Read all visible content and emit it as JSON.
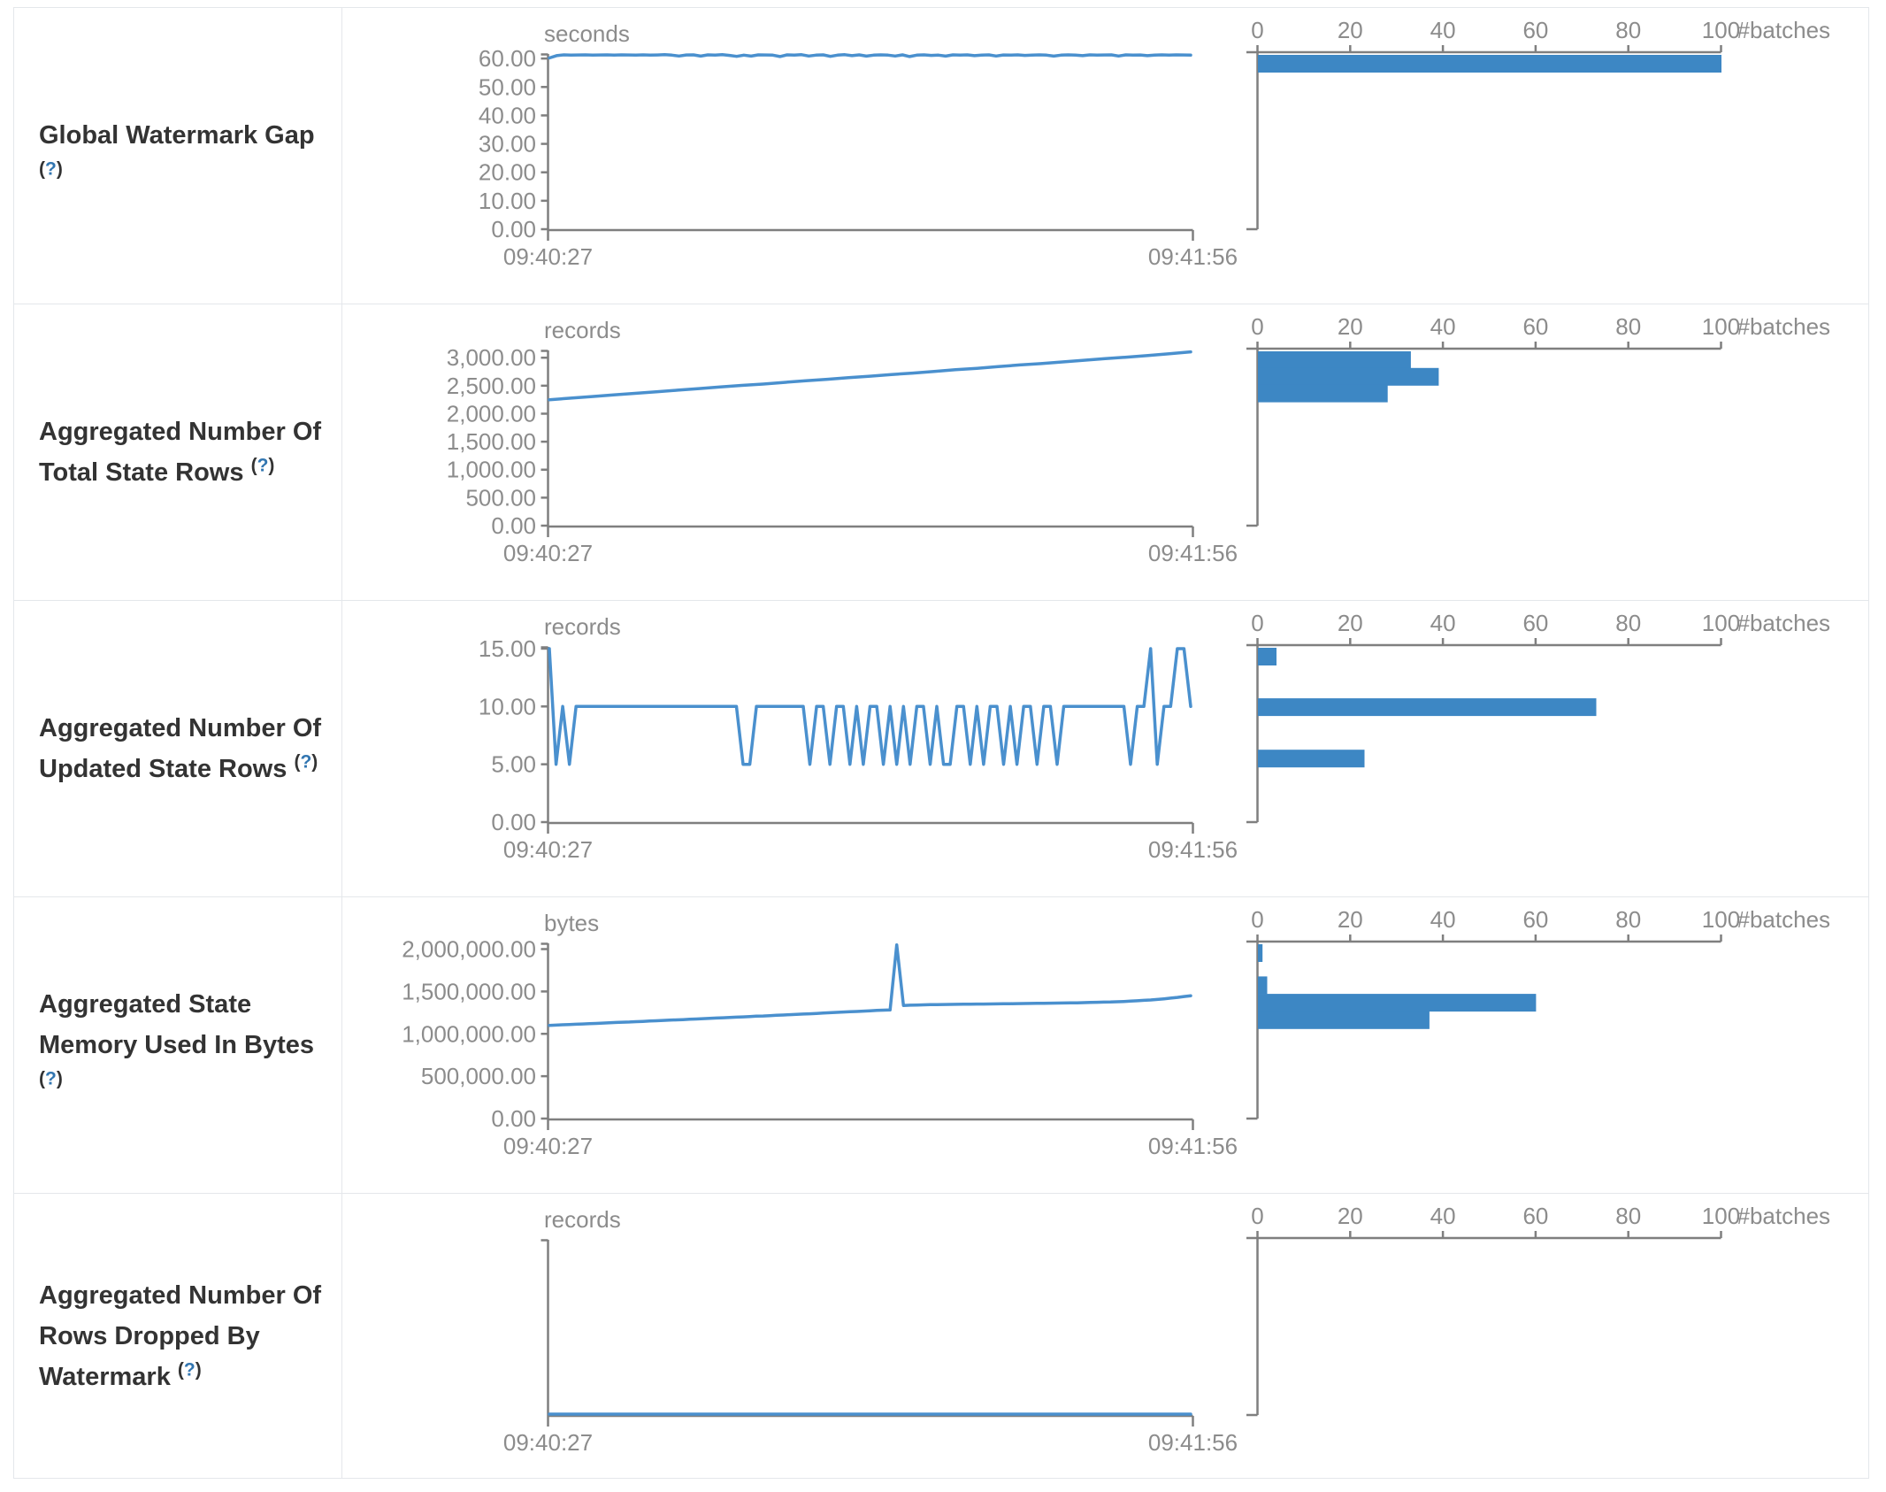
{
  "meta": {
    "paren_open": "(",
    "question_mark": "?",
    "paren_close": ")"
  },
  "colors": {
    "line": "#4a90ce",
    "bar": "#3d87c4",
    "axis": "#7f7f7f",
    "tick_text": "#8c8c8c",
    "label_text": "#333333",
    "help_link": "#3276b1",
    "border": "#e4e7eb"
  },
  "histogram_axis": {
    "ticks": [
      {
        "v": 0,
        "label": "0"
      },
      {
        "v": 20,
        "label": "20"
      },
      {
        "v": 40,
        "label": "40"
      },
      {
        "v": 60,
        "label": "60"
      },
      {
        "v": 80,
        "label": "80"
      },
      {
        "v": 100,
        "label": "100"
      }
    ],
    "max": 100,
    "unit": "#batches"
  },
  "rows": [
    {
      "label": "Global Watermark Gap\n",
      "timeline": {
        "type": "line",
        "unit": "seconds",
        "x_start_label": "09:40:27",
        "x_end_label": "09:41:56",
        "domain_max": 61.6,
        "y_ticks": [
          {
            "v": 60,
            "label": "60.00"
          },
          {
            "v": 50,
            "label": "50.00"
          },
          {
            "v": 40,
            "label": "40.00"
          },
          {
            "v": 30,
            "label": "30.00"
          },
          {
            "v": 20,
            "label": "20.00"
          },
          {
            "v": 10,
            "label": "10.00"
          },
          {
            "v": 0,
            "label": "0.00"
          }
        ],
        "values": [
          60.2,
          61.0,
          61.3,
          61.2,
          61.25,
          61.3,
          61.2,
          61.25,
          61.3,
          61.2,
          61.3,
          61.25,
          61.2,
          61.3,
          61.2,
          61.25,
          61.35,
          61.2,
          60.9,
          61.25,
          61.3,
          60.85,
          61.3,
          61.2,
          61.35,
          61.1,
          60.75,
          61.2,
          60.85,
          61.3,
          61.25,
          61.2,
          60.7,
          61.3,
          61.2,
          61.35,
          60.9,
          61.2,
          61.3,
          60.75,
          61.2,
          61.35,
          61.0,
          61.3,
          60.85,
          61.2,
          61.3,
          61.2,
          60.9,
          61.3,
          60.7,
          61.2,
          61.3,
          61.1,
          61.2,
          60.85,
          61.3,
          61.2,
          61.3,
          61.0,
          61.2,
          61.3,
          60.9,
          61.25,
          61.2,
          61.3,
          61.1,
          61.2,
          61.3,
          61.2,
          60.85,
          61.2,
          61.3,
          61.2,
          61.0,
          61.3,
          61.2,
          61.25,
          61.3,
          60.9,
          61.3,
          61.2,
          61.25,
          61.0,
          61.2,
          61.3,
          61.2,
          61.3,
          61.25,
          61.2
        ]
      },
      "histogram": {
        "type": "bar",
        "bars": [
          {
            "count": 100,
            "y_frac": 0.0
          }
        ]
      }
    },
    {
      "label": "Aggregated Number Of\nTotal State Rows ",
      "timeline": {
        "type": "line",
        "unit": "records",
        "x_start_label": "09:40:27",
        "x_end_label": "09:41:56",
        "domain_max": 3130,
        "y_ticks": [
          {
            "v": 3000,
            "label": "3,000.00"
          },
          {
            "v": 2500,
            "label": "2,500.00"
          },
          {
            "v": 2000,
            "label": "2,000.00"
          },
          {
            "v": 1500,
            "label": "1,500.00"
          },
          {
            "v": 1000,
            "label": "1,000.00"
          },
          {
            "v": 500,
            "label": "500.00"
          },
          {
            "v": 0,
            "label": "0.00"
          }
        ],
        "values": [
          2250,
          2278,
          2306,
          2335,
          2363,
          2392,
          2420,
          2448,
          2477,
          2505,
          2530,
          2560,
          2590,
          2615,
          2645,
          2670,
          2700,
          2725,
          2755,
          2785,
          2810,
          2840,
          2870,
          2895,
          2925,
          2955,
          2985,
          3010,
          3040,
          3070,
          3105
        ]
      },
      "histogram": {
        "type": "bar",
        "bars": [
          {
            "count": 33,
            "y_frac": 0.0
          },
          {
            "count": 39,
            "y_frac": 0.0955
          },
          {
            "count": 28,
            "y_frac": 0.191
          }
        ]
      }
    },
    {
      "label": "Aggregated Number Of\nUpdated State Rows ",
      "timeline": {
        "type": "line",
        "unit": "records",
        "x_start_label": "09:40:27",
        "x_end_label": "09:41:56",
        "domain_max": 15.15,
        "y_ticks": [
          {
            "v": 15,
            "label": "15.00"
          },
          {
            "v": 10,
            "label": "10.00"
          },
          {
            "v": 5,
            "label": "5.00"
          },
          {
            "v": 0,
            "label": "0.00"
          }
        ],
        "values": [
          15,
          5,
          10,
          5,
          10,
          10,
          10,
          10,
          10,
          10,
          10,
          10,
          10,
          10,
          10,
          10,
          10,
          10,
          10,
          10,
          10,
          10,
          10,
          10,
          10,
          10,
          10,
          10,
          10,
          5,
          5,
          10,
          10,
          10,
          10,
          10,
          10,
          10,
          10,
          5,
          10,
          10,
          5,
          10,
          10,
          5,
          10,
          5,
          10,
          10,
          5,
          10,
          5,
          10,
          5,
          10,
          10,
          5,
          10,
          5,
          5,
          10,
          10,
          5,
          10,
          5,
          10,
          10,
          5,
          10,
          5,
          10,
          10,
          5,
          10,
          10,
          5,
          10,
          10,
          10,
          10,
          10,
          10,
          10,
          10,
          10,
          10,
          5,
          10,
          10,
          15,
          5,
          10,
          10,
          15,
          15,
          10
        ]
      },
      "histogram": {
        "type": "bar",
        "bars": [
          {
            "count": 4,
            "y_frac": 0.0
          },
          {
            "count": 73,
            "y_frac": 0.29
          },
          {
            "count": 23,
            "y_frac": 0.585
          }
        ]
      }
    },
    {
      "label": "Aggregated State\nMemory Used In Bytes\n",
      "timeline": {
        "type": "line",
        "unit": "bytes",
        "x_start_label": "09:40:27",
        "x_end_label": "09:41:56",
        "domain_max": 2068000,
        "y_ticks": [
          {
            "v": 2000000,
            "label": "2,000,000.00"
          },
          {
            "v": 1500000,
            "label": "1,500,000.00"
          },
          {
            "v": 1000000,
            "label": "1,000,000.00"
          },
          {
            "v": 500000,
            "label": "500,000.00"
          },
          {
            "v": 0,
            "label": "0.00"
          }
        ],
        "values": [
          1100000,
          1103000,
          1107000,
          1110000,
          1113000,
          1117000,
          1120000,
          1123000,
          1127000,
          1130000,
          1134000,
          1137000,
          1140000,
          1144000,
          1147000,
          1151000,
          1154000,
          1158000,
          1161000,
          1165000,
          1168000,
          1172000,
          1175000,
          1179000,
          1182000,
          1186000,
          1190000,
          1193000,
          1197000,
          1200000,
          1204000,
          1208000,
          1211000,
          1215000,
          1219000,
          1222000,
          1226000,
          1230000,
          1234000,
          1237000,
          1241000,
          1245000,
          1249000,
          1253000,
          1257000,
          1261000,
          1264000,
          1268000,
          1272000,
          1276000,
          1279000,
          1282000,
          2050000,
          1335000,
          1338000,
          1340000,
          1342000,
          1344000,
          1345000,
          1346000,
          1347000,
          1348000,
          1349000,
          1350000,
          1351000,
          1352000,
          1353000,
          1354000,
          1355000,
          1356000,
          1357000,
          1358000,
          1359000,
          1360000,
          1361000,
          1362000,
          1363000,
          1364000,
          1365000,
          1366000,
          1368000,
          1370000,
          1372000,
          1374000,
          1376000,
          1379000,
          1382000,
          1386000,
          1390000,
          1395000,
          1400000,
          1406000,
          1413000,
          1421000,
          1430000,
          1440000,
          1450000
        ]
      },
      "histogram": {
        "type": "bar",
        "bars": [
          {
            "count": 1,
            "y_frac": 0.0
          },
          {
            "count": 2,
            "y_frac": 0.185
          },
          {
            "count": 60,
            "y_frac": 0.285
          },
          {
            "count": 37,
            "y_frac": 0.385
          }
        ]
      }
    },
    {
      "label": "Aggregated Number Of\nRows Dropped By\nWatermark ",
      "timeline": {
        "type": "line",
        "unit": "records",
        "x_start_label": "09:40:27",
        "x_end_label": "09:41:56",
        "domain_max": 1,
        "y_ticks": [],
        "values": [
          0,
          0
        ]
      },
      "histogram": {
        "type": "bar",
        "bars": []
      }
    }
  ]
}
